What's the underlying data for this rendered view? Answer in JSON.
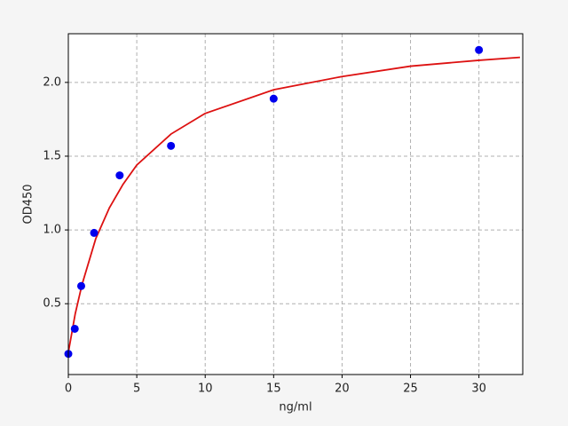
{
  "chart_data": {
    "type": "scatter",
    "x_label": "ng/ml",
    "y_label": "OD450",
    "points": {
      "x": [
        0,
        0.47,
        0.94,
        1.88,
        3.75,
        7.5,
        15,
        30
      ],
      "y": [
        0.16,
        0.33,
        0.62,
        0.98,
        1.37,
        1.57,
        1.89,
        2.22
      ],
      "color": "#0000ee"
    },
    "curve": {
      "x": [
        0,
        0.5,
        1,
        2,
        3,
        4,
        5,
        7.5,
        10,
        15,
        20,
        25,
        30,
        33
      ],
      "y": [
        0.17,
        0.43,
        0.63,
        0.94,
        1.15,
        1.31,
        1.44,
        1.65,
        1.79,
        1.95,
        2.04,
        2.11,
        2.15,
        2.17
      ],
      "color": "#dd1111"
    },
    "xlim": [
      0,
      33.2
    ],
    "ylim": [
      0.02,
      2.33
    ],
    "xticks": [
      0,
      5,
      10,
      15,
      20,
      25,
      30
    ],
    "yticks": [
      0.5,
      {
        "value": 1,
        "label": "1.0"
      },
      1.5,
      {
        "value": 2,
        "label": "2.0"
      }
    ],
    "grid": true
  }
}
